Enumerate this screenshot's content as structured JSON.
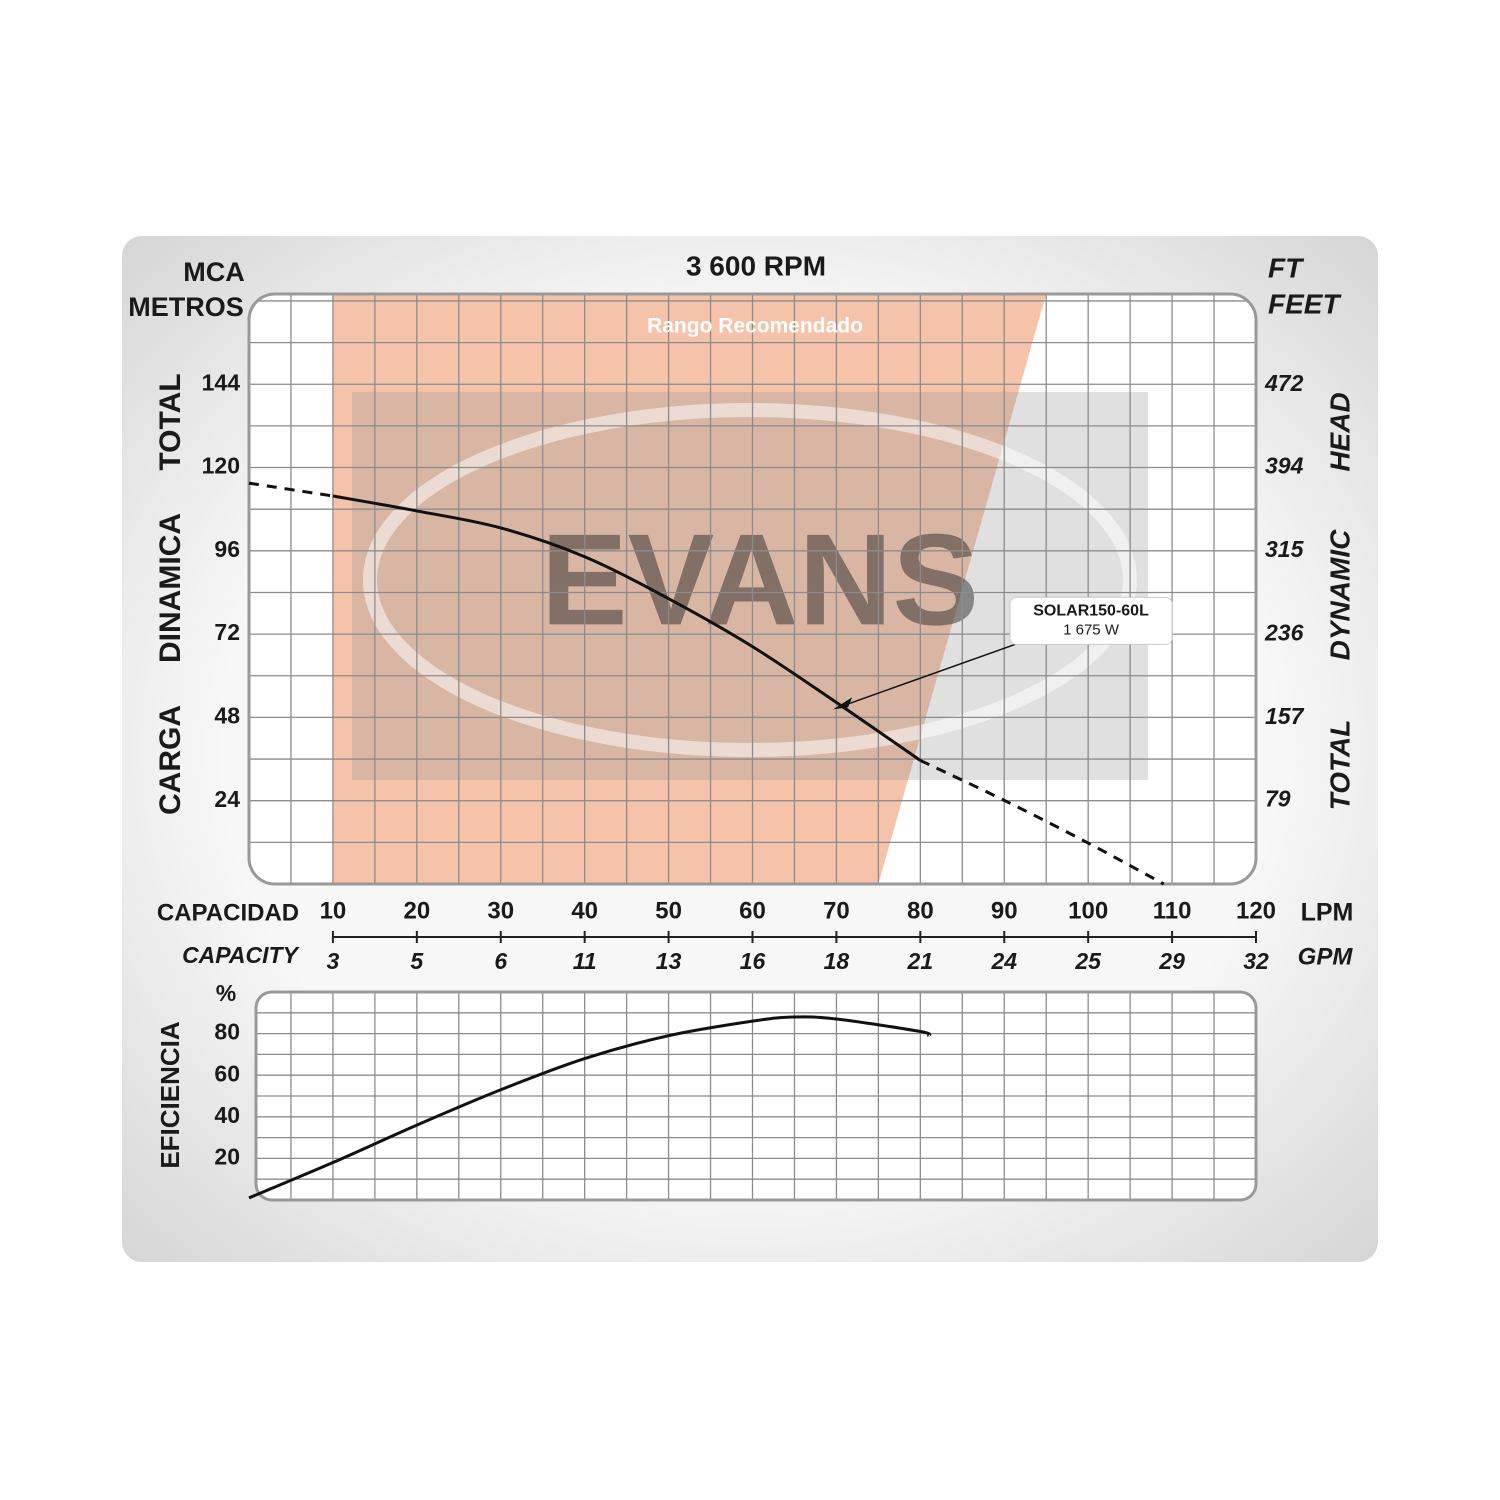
{
  "chart_data": [
    {
      "type": "line",
      "title": "3 600 RPM",
      "y_unit": [
        "MCA",
        "METROS"
      ],
      "y_label": [
        "CARGA",
        "DINAMICA",
        "TOTAL"
      ],
      "y2_unit": [
        "FT",
        "FEET"
      ],
      "y2_label": [
        "TOTAL",
        "DYNAMIC",
        "HEAD"
      ],
      "x_label": "CAPACIDAD",
      "x_unit": "LPM",
      "x2_label": "CAPACITY",
      "x2_unit": "GPM",
      "xlim": [
        0,
        120
      ],
      "xticks": [
        10,
        20,
        30,
        40,
        50,
        60,
        70,
        80,
        90,
        100,
        110,
        120
      ],
      "x2tick_labels": [
        "3",
        "5",
        "6",
        "11",
        "13",
        "16",
        "18",
        "21",
        "24",
        "25",
        "29",
        "32"
      ],
      "ylim": [
        0,
        170
      ],
      "yticks": [
        24,
        48,
        72,
        96,
        120,
        144
      ],
      "y2lim": [
        0,
        558
      ],
      "y2ticks": [
        79,
        157,
        236,
        315,
        394,
        472
      ],
      "grid_step_x": 5,
      "grid_step_y": 12,
      "shade": {
        "label": "Rango Recomendado",
        "x_top": [
          10,
          95
        ],
        "x_bottom": [
          10,
          75
        ],
        "color": "#f5c3a9"
      },
      "watermark": "EVANS",
      "x": [
        0,
        10,
        20,
        30,
        40,
        50,
        60,
        70,
        80,
        90,
        100,
        109
      ],
      "series": [
        {
          "style": "solid",
          "color": "#111111",
          "values": [
            null,
            111.8,
            107.5,
            102.6,
            94.3,
            82.2,
            68.4,
            52.3,
            35.6,
            null,
            null,
            null
          ]
        },
        {
          "style": "dashed",
          "color": "#111111",
          "values": [
            115.5,
            111.8,
            null,
            null,
            null,
            null,
            null,
            null,
            35.6,
            24.1,
            11.8,
            0
          ]
        }
      ],
      "annotation": {
        "text": "SOLAR150-60L",
        "subtext": "1 675 W",
        "x": 69.6,
        "y": 50.3
      }
    },
    {
      "type": "line",
      "y_label": "EFICIENCIA",
      "y_unit": "%",
      "xlim": [
        0,
        120
      ],
      "ylim": [
        0,
        100
      ],
      "yticks": [
        20,
        40,
        60,
        80
      ],
      "grid_step_x": 5,
      "grid_step_y": 10,
      "x": [
        0,
        10,
        20,
        30,
        40,
        50,
        60,
        65,
        70,
        80,
        81
      ],
      "series": [
        {
          "style": "solid",
          "color": "#111111",
          "values": [
            1,
            18,
            36,
            53,
            68,
            79,
            86,
            88,
            87,
            81,
            79
          ]
        }
      ]
    }
  ]
}
